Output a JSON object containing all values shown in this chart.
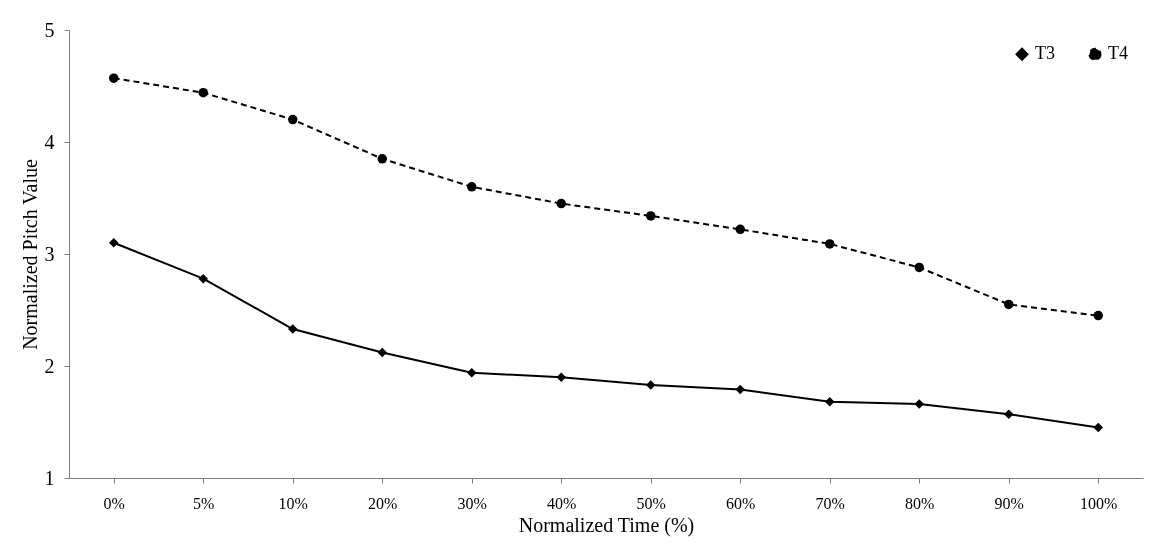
{
  "chart_data": {
    "type": "line",
    "xlabel": "Normalized Time (%)",
    "ylabel": "Normalized Pitch Value",
    "categories": [
      "0%",
      "5%",
      "10%",
      "20%",
      "30%",
      "40%",
      "50%",
      "60%",
      "70%",
      "80%",
      "90%",
      "100%"
    ],
    "series": [
      {
        "name": "T3",
        "color": "#000000",
        "marker": "diamond",
        "line_style": "solid",
        "values": [
          3.1,
          2.78,
          2.33,
          2.12,
          1.94,
          1.9,
          1.83,
          1.79,
          1.68,
          1.66,
          1.57,
          1.45
        ]
      },
      {
        "name": "T4",
        "color": "#000000",
        "marker": "circle",
        "line_style": "dashed",
        "values": [
          4.57,
          4.44,
          4.2,
          3.85,
          3.6,
          3.45,
          3.34,
          3.22,
          3.09,
          2.88,
          2.55,
          2.45
        ]
      }
    ],
    "ylim": [
      1,
      5
    ],
    "yticks": [
      1,
      2,
      3,
      4,
      5
    ],
    "grid": false,
    "legend": "top right"
  }
}
